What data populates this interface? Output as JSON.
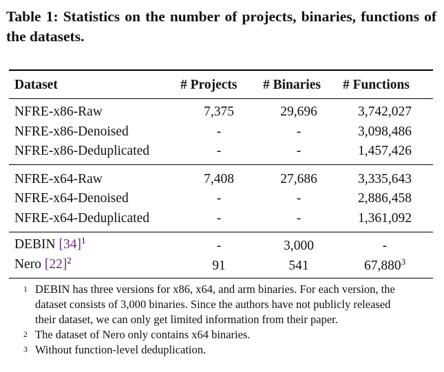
{
  "caption": "Table 1: Statistics on the number of projects, binaries, functions of the datasets.",
  "headers": [
    "Dataset",
    "# Projects",
    "# Binaries",
    "# Functions"
  ],
  "groups": [
    [
      {
        "dataset": "NFRE-x86-Raw",
        "projects": "7,375",
        "binaries": "29,696",
        "functions": "3,742,027"
      },
      {
        "dataset": "NFRE-x86-Denoised",
        "projects": "-",
        "binaries": "-",
        "functions": "3,098,486"
      },
      {
        "dataset": "NFRE-x86-Deduplicated",
        "projects": "-",
        "binaries": "-",
        "functions": "1,457,426"
      }
    ],
    [
      {
        "dataset": "NFRE-x64-Raw",
        "projects": "7,408",
        "binaries": "27,686",
        "functions": "3,335,643"
      },
      {
        "dataset": "NFRE-x64-Denoised",
        "projects": "-",
        "binaries": "-",
        "functions": "2,886,458"
      },
      {
        "dataset": "NFRE-x64-Deduplicated",
        "projects": "-",
        "binaries": "-",
        "functions": "1,361,092"
      }
    ]
  ],
  "refs": [
    {
      "name": "DEBIN",
      "cite": "[34]",
      "sup": "1",
      "projects": "-",
      "binaries": "3,000",
      "functions": "-",
      "functions_sup": ""
    },
    {
      "name": "Nero",
      "cite": "[22]",
      "sup": "2",
      "projects": "91",
      "binaries": "541",
      "functions": "67,880",
      "functions_sup": "3"
    }
  ],
  "footnotes": [
    {
      "mark": "1",
      "lines": [
        "DEBIN has three versions for x86, x64, and arm binaries. For each version, the",
        "dataset consists of 3,000 binaries. Since the authors have not publicly released",
        "their dataset, we can only get limited information from their paper."
      ]
    },
    {
      "mark": "2",
      "lines": [
        "The dataset of Nero only contains x64 binaries."
      ]
    },
    {
      "mark": "3",
      "lines": [
        "Without function-level deduplication."
      ]
    }
  ]
}
